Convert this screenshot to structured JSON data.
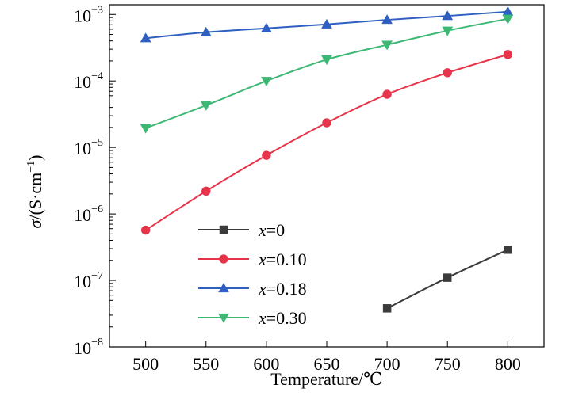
{
  "chart_data": {
    "type": "line",
    "xlabel": "Temperature/℃",
    "ylabel": "σ/(S·cm⁻¹)",
    "ylabel_parts": {
      "sigma": "σ",
      "prefix": "/(S·cm",
      "superscript": "−1",
      "suffix": ")"
    },
    "xlim": [
      470,
      830
    ],
    "ylim": [
      1e-08,
      0.0014
    ],
    "yscale": "log",
    "xticks": [
      500,
      550,
      600,
      650,
      700,
      750,
      800
    ],
    "yticks": [
      {
        "value": 1e-08,
        "mantissa": "10",
        "exp": "−8"
      },
      {
        "value": 1e-07,
        "mantissa": "10",
        "exp": "−7"
      },
      {
        "value": 1e-06,
        "mantissa": "10",
        "exp": "−6"
      },
      {
        "value": 1e-05,
        "mantissa": "10",
        "exp": "−5"
      },
      {
        "value": 0.0001,
        "mantissa": "10",
        "exp": "−4"
      },
      {
        "value": 0.001,
        "mantissa": "10",
        "exp": "−3"
      }
    ],
    "grid": false,
    "legend_position": "lower-left",
    "series": [
      {
        "name": "x=0",
        "legend_var": "x",
        "legend_value": "=0",
        "color": "#3b3b3b",
        "marker": "square",
        "x": [
          700,
          750,
          800
        ],
        "y": [
          3.8e-08,
          1.1e-07,
          2.9e-07
        ]
      },
      {
        "name": "x=0.10",
        "legend_var": "x",
        "legend_value": "=0.10",
        "color": "#e8344a",
        "marker": "circle",
        "x": [
          500,
          550,
          600,
          650,
          700,
          750,
          800
        ],
        "y": [
          5.7e-07,
          2.2e-06,
          7.6e-06,
          2.35e-05,
          6.3e-05,
          0.000133,
          0.00025
        ]
      },
      {
        "name": "x=0.18",
        "legend_var": "x",
        "legend_value": "=0.18",
        "color": "#2f5fc0",
        "marker": "triangle-up",
        "x": [
          500,
          550,
          600,
          650,
          700,
          750,
          800
        ],
        "y": [
          0.00044,
          0.00054,
          0.00062,
          0.00071,
          0.00083,
          0.00095,
          0.0011
        ]
      },
      {
        "name": "x=0.30",
        "legend_var": "x",
        "legend_value": "=0.30",
        "color": "#3db874",
        "marker": "triangle-down",
        "x": [
          500,
          550,
          600,
          650,
          700,
          750,
          800
        ],
        "y": [
          1.95e-05,
          4.3e-05,
          0.0001,
          0.00021,
          0.00035,
          0.00057,
          0.00086
        ]
      }
    ]
  }
}
